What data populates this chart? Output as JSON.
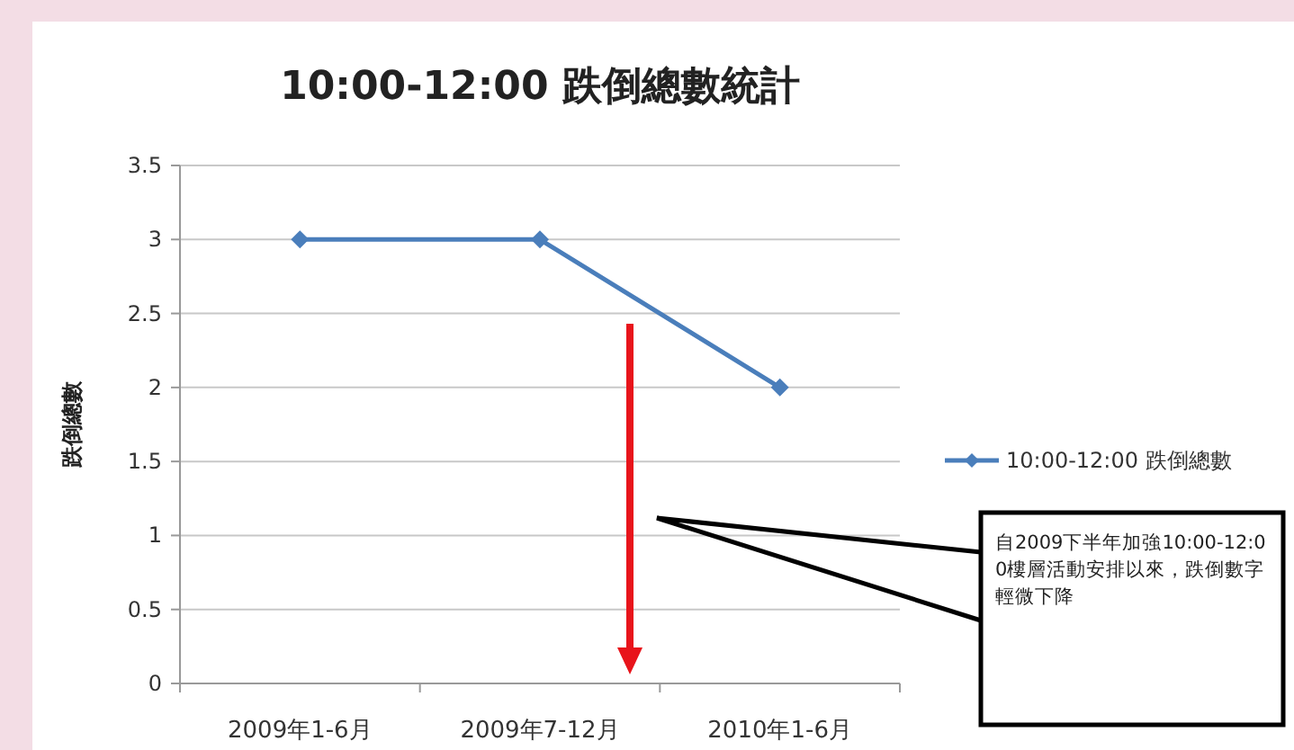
{
  "chart_data": {
    "type": "line",
    "title": "10:00-12:00 跌倒總數統計",
    "ylabel": "跌倒總數",
    "categories": [
      "2009年1-6月",
      "2009年7-12月",
      "2010年1-6月"
    ],
    "series": [
      {
        "name": "10:00-12:00 跌倒總數",
        "color": "#4a7ebb",
        "values": [
          3,
          3,
          2
        ]
      }
    ],
    "ylim": [
      0,
      3.5
    ],
    "yticks": [
      0,
      0.5,
      1,
      1.5,
      2,
      2.5,
      3,
      3.5
    ],
    "grid": "y",
    "legend": "right",
    "marker": "diamond",
    "line_style": "solid",
    "annotations": [
      "自2009下半年加強10:00-12:00樓層活動安排以來，跌倒數字輕微下降"
    ]
  }
}
